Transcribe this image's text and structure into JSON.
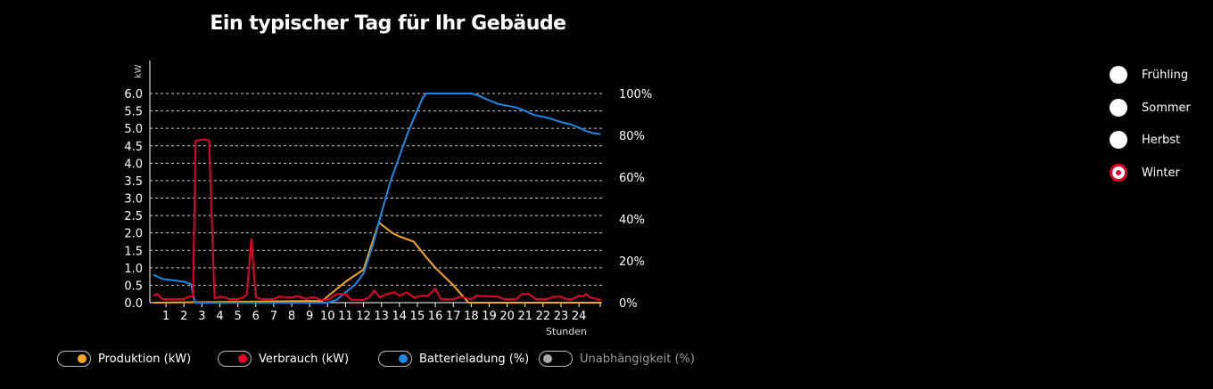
{
  "chart_data": {
    "type": "line",
    "title": "Ein typischer Tag für Ihr Gebäude",
    "xlabel": "Stunden",
    "ylabel_left": "kW",
    "x_ticks": [
      "1",
      "2",
      "3",
      "4",
      "5",
      "6",
      "7",
      "8",
      "9",
      "10",
      "11",
      "12",
      "13",
      "14",
      "15",
      "16",
      "17",
      "18",
      "19",
      "20",
      "21",
      "22",
      "23",
      "24"
    ],
    "y_left_ticks": [
      "0.0",
      "0.5",
      "1.0",
      "1.5",
      "2.0",
      "2.5",
      "3.0",
      "3.5",
      "4.0",
      "4.5",
      "5.0",
      "5.5",
      "6.0"
    ],
    "y_right_ticks": [
      "0%",
      "20%",
      "40%",
      "60%",
      "80%",
      "100%"
    ],
    "ylim_left": [
      0,
      6
    ],
    "ylim_right": [
      0,
      100
    ],
    "grid": true,
    "series": [
      {
        "name": "Produktion (kW)",
        "axis": "left",
        "color": "#f5a623",
        "x": [
          0.3,
          9.7,
          11,
          12,
          12.85,
          13.6,
          14,
          14.8,
          15.5,
          16,
          17,
          17.85,
          25.2
        ],
        "y": [
          0,
          0.05,
          0.6,
          0.95,
          2.3,
          2.0,
          1.9,
          1.75,
          1.3,
          1.0,
          0.5,
          0,
          0
        ]
      },
      {
        "name": "Verbrauch (kW)",
        "axis": "left",
        "color": "#e4002b",
        "x": [
          0.3,
          0.5,
          0.8,
          1.5,
          2.0,
          2.2,
          2.5,
          2.65,
          3.0,
          3.4,
          3.7,
          4.0,
          4.3,
          4.5,
          5.0,
          5.3,
          5.5,
          5.75,
          6.0,
          6.3,
          7.0,
          7.3,
          8,
          8.3,
          8.6,
          8.8,
          9,
          9.3,
          9.6,
          10,
          10.5,
          11,
          11.3,
          12,
          12.3,
          12.6,
          12.9,
          13.3,
          13.7,
          14,
          14.4,
          14.8,
          15.3,
          15.6,
          16,
          16.3,
          17,
          17.4,
          18,
          18.3,
          19,
          19.5,
          19.8,
          20.5,
          20.8,
          21.2,
          21.6,
          22.2,
          22.6,
          23,
          23.3,
          23.6,
          24,
          24.2,
          24.4,
          24.6,
          25,
          25.2
        ],
        "y": [
          0.2,
          0.25,
          0.1,
          0.1,
          0.1,
          0.17,
          0.17,
          4.65,
          4.68,
          4.65,
          0.12,
          0.17,
          0.15,
          0.1,
          0.1,
          0.15,
          0.25,
          1.83,
          0.15,
          0.1,
          0.1,
          0.17,
          0.15,
          0.18,
          0.15,
          0.1,
          0.15,
          0.15,
          0.08,
          0.08,
          0.25,
          0.25,
          0.08,
          0.08,
          0.15,
          0.35,
          0.15,
          0.25,
          0.3,
          0.2,
          0.3,
          0.15,
          0.2,
          0.2,
          0.4,
          0.1,
          0.1,
          0.17,
          0.1,
          0.2,
          0.18,
          0.17,
          0.1,
          0.1,
          0.25,
          0.25,
          0.1,
          0.1,
          0.17,
          0.17,
          0.1,
          0.1,
          0.2,
          0.18,
          0.25,
          0.15,
          0.1,
          0.08
        ]
      },
      {
        "name": "Batterieladung (%)",
        "axis": "right",
        "color": "#1e88e5",
        "x": [
          0.3,
          0.8,
          2.0,
          2.4,
          2.6,
          10,
          10.5,
          11,
          11.5,
          12,
          12.5,
          13,
          13.5,
          14,
          14.5,
          15,
          15.3,
          15.5,
          18,
          18.4,
          19,
          19.5,
          20.5,
          21,
          21.5,
          22.3,
          23,
          23.5,
          24,
          24.4,
          24.8,
          25.2
        ],
        "y": [
          13.3,
          11.3,
          10,
          8.8,
          0,
          0,
          1.3,
          5,
          8.3,
          14,
          27,
          43,
          58,
          70,
          82,
          92,
          98,
          100,
          100,
          99,
          96.7,
          95,
          93.3,
          91.7,
          89.7,
          88.3,
          86.3,
          85.3,
          83.7,
          82,
          81,
          80.5
        ]
      },
      {
        "name": "Unabhängigkeit (%)",
        "axis": "right",
        "color": "#aaaaaa",
        "x": [],
        "y": []
      }
    ]
  },
  "legend": [
    {
      "label": "Produktion (kW)",
      "color": "#f5a623",
      "enabled": true
    },
    {
      "label": "Verbrauch (kW)",
      "color": "#e4002b",
      "enabled": true
    },
    {
      "label": "Batterieladung (%)",
      "color": "#1e88e5",
      "enabled": true
    },
    {
      "label": "Unabhängigkeit (%)",
      "color": "#aaaaaa",
      "enabled": false
    }
  ],
  "seasons": [
    {
      "label": "Frühling",
      "selected": false
    },
    {
      "label": "Sommer",
      "selected": false
    },
    {
      "label": "Herbst",
      "selected": false
    },
    {
      "label": "Winter",
      "selected": true
    }
  ]
}
